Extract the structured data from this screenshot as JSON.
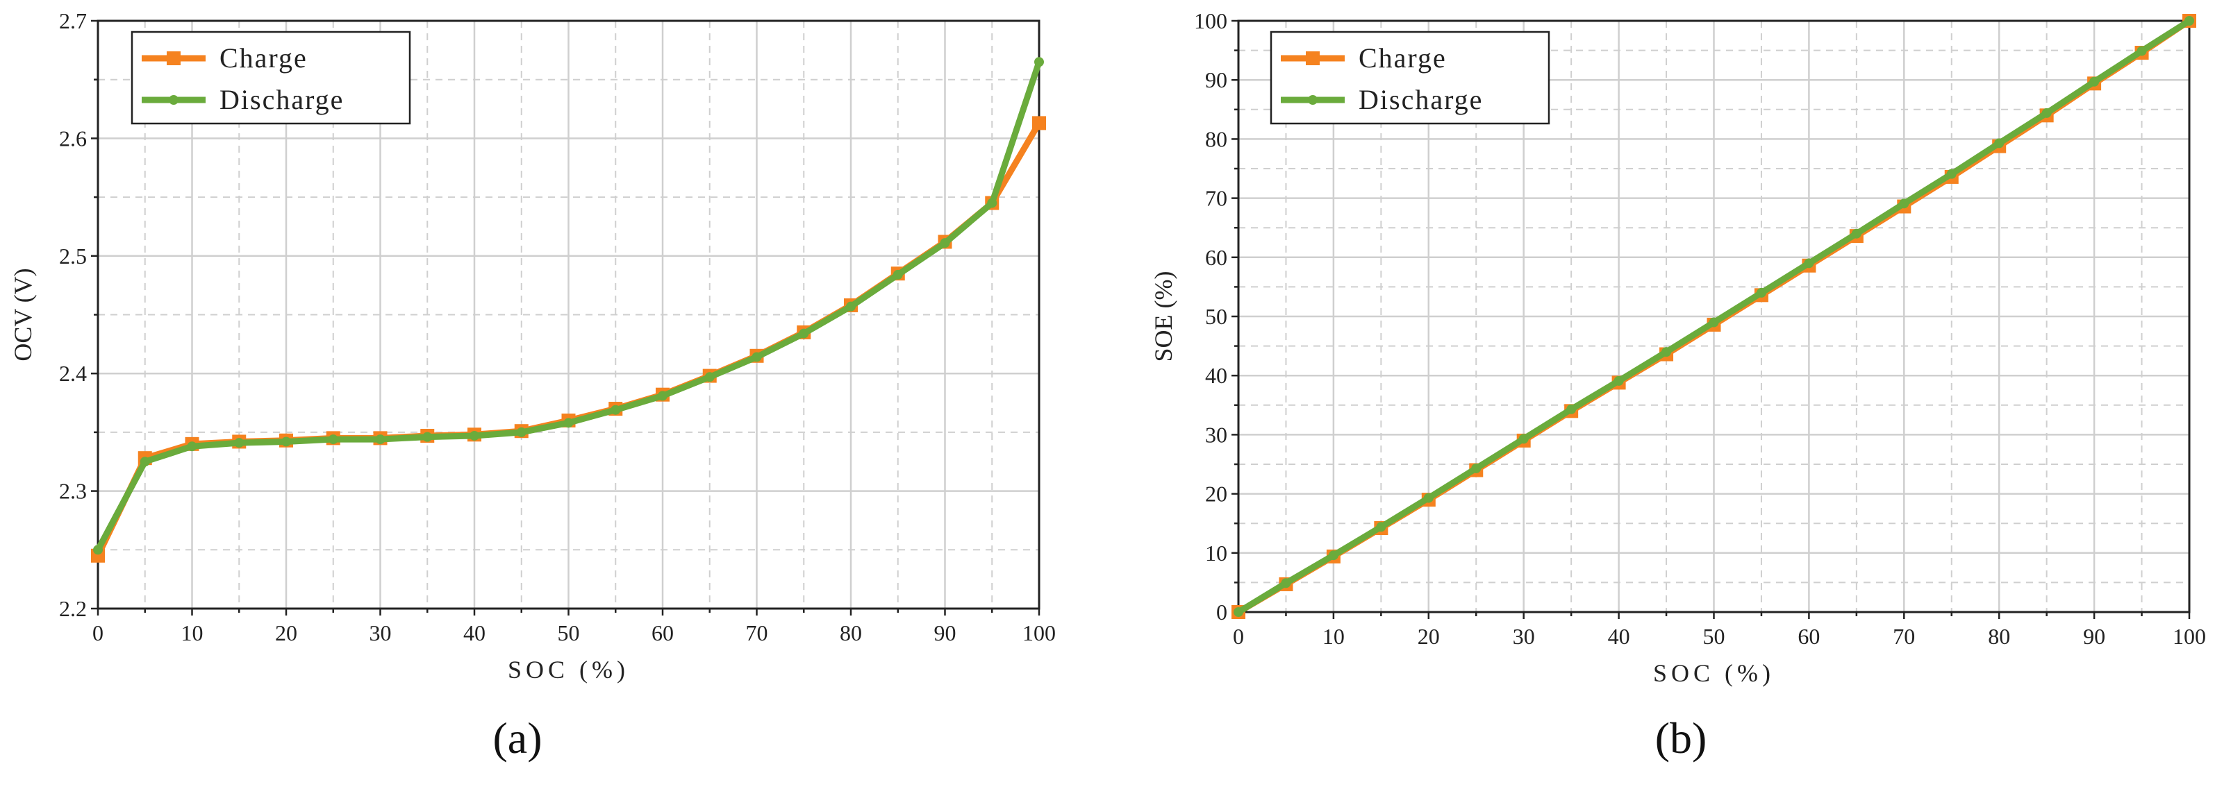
{
  "colors": {
    "charge": "#f5821f",
    "discharge": "#6aab3c"
  },
  "chart_data": [
    {
      "type": "line",
      "panel_label": "(a)",
      "xlabel": "SOC (%)",
      "ylabel": "OCV (V)",
      "xlim": [
        0,
        100
      ],
      "ylim": [
        2.2,
        2.7
      ],
      "x_ticks": [
        0,
        10,
        20,
        30,
        40,
        50,
        60,
        70,
        80,
        90,
        100
      ],
      "y_ticks": [
        2.2,
        2.3,
        2.4,
        2.5,
        2.6,
        2.7
      ],
      "x_tick_labels": [
        "0",
        "10",
        "20",
        "30",
        "40",
        "50",
        "60",
        "70",
        "80",
        "90",
        "100"
      ],
      "y_tick_labels": [
        "2.2",
        "2.3",
        "2.4",
        "2.5",
        "2.6",
        "2.7"
      ],
      "grid": true,
      "legend_position": "top-left",
      "x": [
        0,
        5,
        10,
        15,
        20,
        25,
        30,
        35,
        40,
        45,
        50,
        55,
        60,
        65,
        70,
        75,
        80,
        85,
        90,
        95,
        100
      ],
      "series": [
        {
          "name": "Charge",
          "marker": "square",
          "values": [
            2.245,
            2.328,
            2.34,
            2.342,
            2.343,
            2.345,
            2.345,
            2.347,
            2.348,
            2.351,
            2.36,
            2.37,
            2.382,
            2.398,
            2.415,
            2.435,
            2.458,
            2.485,
            2.512,
            2.545,
            2.613
          ]
        },
        {
          "name": "Discharge",
          "marker": "circle",
          "values": [
            2.25,
            2.325,
            2.338,
            2.341,
            2.342,
            2.344,
            2.344,
            2.346,
            2.347,
            2.35,
            2.358,
            2.369,
            2.381,
            2.397,
            2.414,
            2.434,
            2.457,
            2.484,
            2.511,
            2.545,
            2.665
          ]
        }
      ]
    },
    {
      "type": "line",
      "panel_label": "(b)",
      "xlabel": "SOC (%)",
      "ylabel": "SOE (%)",
      "xlim": [
        0,
        100
      ],
      "ylim": [
        0,
        100
      ],
      "x_ticks": [
        0,
        10,
        20,
        30,
        40,
        50,
        60,
        70,
        80,
        90,
        100
      ],
      "y_ticks": [
        0,
        10,
        20,
        30,
        40,
        50,
        60,
        70,
        80,
        90,
        100
      ],
      "x_tick_labels": [
        "0",
        "10",
        "20",
        "30",
        "40",
        "50",
        "60",
        "70",
        "80",
        "90",
        "100"
      ],
      "y_tick_labels": [
        "0",
        "10",
        "20",
        "30",
        "40",
        "50",
        "60",
        "70",
        "80",
        "90",
        "100"
      ],
      "grid": true,
      "legend_position": "top-left",
      "x": [
        0,
        5,
        10,
        15,
        20,
        25,
        30,
        35,
        40,
        45,
        50,
        55,
        60,
        65,
        70,
        75,
        80,
        85,
        90,
        95,
        100
      ],
      "series": [
        {
          "name": "Charge",
          "marker": "square",
          "values": [
            0,
            4.7,
            9.4,
            14.2,
            19.0,
            24.0,
            29.0,
            34.0,
            38.8,
            43.6,
            48.6,
            53.6,
            58.6,
            63.6,
            68.6,
            73.6,
            78.8,
            84.0,
            89.4,
            94.6,
            100
          ]
        },
        {
          "name": "Discharge",
          "marker": "circle",
          "values": [
            0,
            4.9,
            9.6,
            14.4,
            19.3,
            24.3,
            29.3,
            34.3,
            39.1,
            44.0,
            49.0,
            54.0,
            59.0,
            64.0,
            69.1,
            74.1,
            79.3,
            84.4,
            89.7,
            94.9,
            100
          ]
        }
      ]
    }
  ]
}
